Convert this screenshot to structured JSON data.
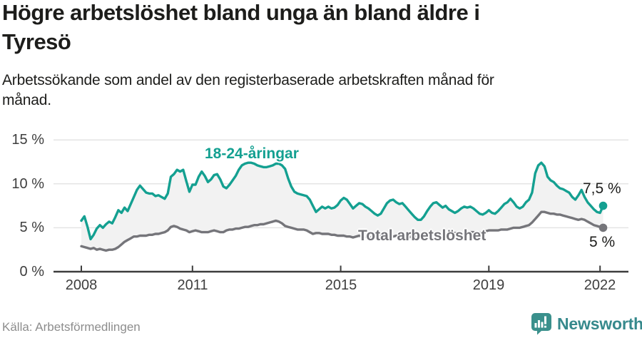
{
  "header": {
    "title_lines": [
      "Högre arbetslöshet bland unga än bland äldre i",
      "Tyresö"
    ],
    "subtitle_lines": [
      "Arbetssökande som andel av den registerbaserade arbetskraften månad för",
      "månad."
    ]
  },
  "chart_data": {
    "type": "line",
    "title": "Högre arbetslöshet bland unga än bland äldre i Tyresö",
    "subtitle": "Arbetssökande som andel av den registerbaserade arbetskraften månad för månad.",
    "x_unit": "month",
    "x_start": "2008-01",
    "x_end": "2022-02",
    "base_year": 2008,
    "ylim": [
      0,
      15.5
    ],
    "grid": "horizontal",
    "area_fill_between_series": true,
    "y_ticks": [
      "15 %",
      "10 %",
      "5 %",
      "0 %"
    ],
    "y_tick_values": [
      15,
      10,
      5,
      0
    ],
    "x_ticks": [
      "2008",
      "2011",
      "2015",
      "2019",
      "2022"
    ],
    "x_tick_values": [
      2008,
      2011,
      2015,
      2019,
      2022
    ],
    "series": [
      {
        "name": "18-24-åringar",
        "color": "#14a091",
        "end_label": "7,5 %",
        "values": [
          5.8,
          6.3,
          5.1,
          3.7,
          4.2,
          4.9,
          5.3,
          5.0,
          5.4,
          5.7,
          5.5,
          6.2,
          7.0,
          6.7,
          7.3,
          6.9,
          7.7,
          8.5,
          9.3,
          9.8,
          9.4,
          9.0,
          8.9,
          8.9,
          8.6,
          8.7,
          8.5,
          8.3,
          8.9,
          10.8,
          11.1,
          11.6,
          11.4,
          11.6,
          10.3,
          9.1,
          9.9,
          9.9,
          10.8,
          11.4,
          10.9,
          10.2,
          10.5,
          11.0,
          11.1,
          10.5,
          9.7,
          9.5,
          9.9,
          10.4,
          10.9,
          11.6,
          12.1,
          12.3,
          12.4,
          12.4,
          12.3,
          12.1,
          12.0,
          11.9,
          11.9,
          12.0,
          12.1,
          12.3,
          12.3,
          12.1,
          11.7,
          10.6,
          9.7,
          9.1,
          8.9,
          8.8,
          8.7,
          8.6,
          8.2,
          7.5,
          6.8,
          7.1,
          7.4,
          7.2,
          7.4,
          7.2,
          7.3,
          7.6,
          8.1,
          8.4,
          8.2,
          7.7,
          7.2,
          7.5,
          7.8,
          7.7,
          7.4,
          7.2,
          6.9,
          6.6,
          6.4,
          6.6,
          7.2,
          7.8,
          8.1,
          8.2,
          7.9,
          7.7,
          7.8,
          7.4,
          7.0,
          6.6,
          6.2,
          5.9,
          5.9,
          6.3,
          6.9,
          7.4,
          7.8,
          7.9,
          7.6,
          7.3,
          7.5,
          7.1,
          6.9,
          6.7,
          6.9,
          7.2,
          7.4,
          7.3,
          7.4,
          7.2,
          6.9,
          6.6,
          6.5,
          6.7,
          7.0,
          6.7,
          6.6,
          6.9,
          7.3,
          7.7,
          7.9,
          8.3,
          7.9,
          7.4,
          7.2,
          7.4,
          7.9,
          8.2,
          9.0,
          11.2,
          12.1,
          12.4,
          12.0,
          10.8,
          10.4,
          10.2,
          9.8,
          9.5,
          9.4,
          9.2,
          9.0,
          8.5,
          8.2,
          8.7,
          9.3,
          8.5,
          7.9,
          7.5,
          7.1,
          6.8,
          6.7,
          7.5
        ]
      },
      {
        "name": "Total arbetslöshet",
        "color": "#75757a",
        "end_label": "5 %",
        "values": [
          2.9,
          2.8,
          2.7,
          2.6,
          2.7,
          2.5,
          2.6,
          2.5,
          2.4,
          2.5,
          2.5,
          2.6,
          2.8,
          3.1,
          3.4,
          3.6,
          3.8,
          4.0,
          4.0,
          4.1,
          4.1,
          4.1,
          4.2,
          4.2,
          4.3,
          4.3,
          4.4,
          4.5,
          4.7,
          5.1,
          5.2,
          5.1,
          4.9,
          4.8,
          4.7,
          4.5,
          4.6,
          4.7,
          4.6,
          4.5,
          4.5,
          4.5,
          4.6,
          4.7,
          4.6,
          4.5,
          4.5,
          4.7,
          4.8,
          4.8,
          4.9,
          4.9,
          5.0,
          5.1,
          5.1,
          5.2,
          5.3,
          5.3,
          5.4,
          5.4,
          5.5,
          5.6,
          5.7,
          5.8,
          5.7,
          5.5,
          5.2,
          5.1,
          5.0,
          4.9,
          4.8,
          4.8,
          4.8,
          4.7,
          4.5,
          4.3,
          4.4,
          4.4,
          4.3,
          4.3,
          4.3,
          4.2,
          4.2,
          4.1,
          4.1,
          4.1,
          4.0,
          4.0,
          3.9,
          4.0,
          4.1,
          4.0,
          4.0,
          3.9,
          3.9,
          3.9,
          4.0,
          4.1,
          4.1,
          4.1,
          4.0,
          4.0,
          4.1,
          4.1,
          4.0,
          4.0,
          3.9,
          4.0,
          4.0,
          4.0,
          4.1,
          4.2,
          4.2,
          4.3,
          4.3,
          4.4,
          4.3,
          4.3,
          4.3,
          4.3,
          4.4,
          4.4,
          4.4,
          4.3,
          4.3,
          4.4,
          4.5,
          4.5,
          4.4,
          4.4,
          4.5,
          4.6,
          4.7,
          4.7,
          4.7,
          4.7,
          4.8,
          4.8,
          4.8,
          4.9,
          5.0,
          5.0,
          5.0,
          5.1,
          5.2,
          5.3,
          5.6,
          6.0,
          6.4,
          6.8,
          6.8,
          6.7,
          6.6,
          6.6,
          6.5,
          6.5,
          6.4,
          6.3,
          6.2,
          6.1,
          6.0,
          5.9,
          6.0,
          5.9,
          5.7,
          5.5,
          5.3,
          5.2,
          5.1,
          5.0
        ]
      }
    ],
    "legend_position": "inline-labels"
  },
  "colors": {
    "accent_teal": "#14a091",
    "series_gray": "#75757a",
    "area_fill": "#f2f2f2",
    "gridline": "#e4e4e4",
    "axis": "#3d3d3d",
    "text_dark": "#1d1d1b",
    "source_gray": "#8d8d8d",
    "brand_teal": "#36898c"
  },
  "footer": {
    "source": "Källa: Arbetsförmedlingen",
    "brand": "Newsworthy"
  }
}
